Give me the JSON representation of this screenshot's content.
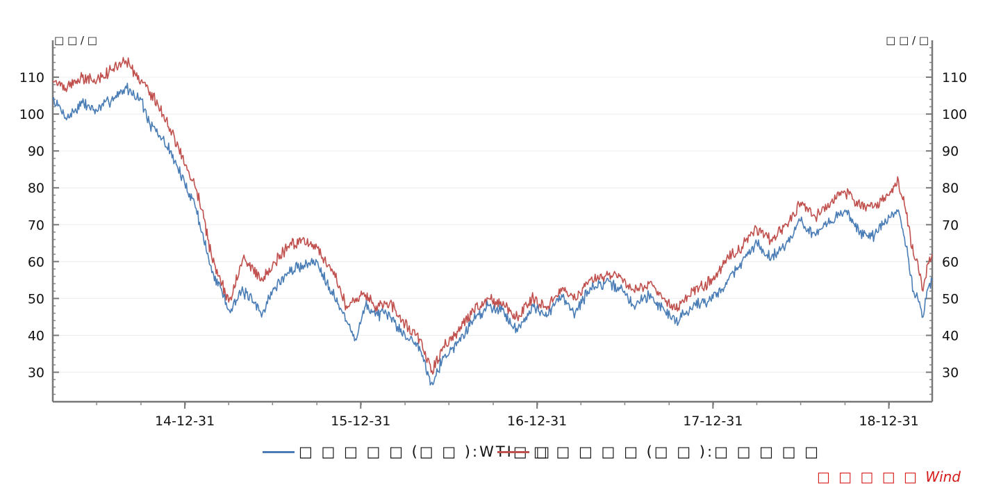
{
  "chart_data": {
    "type": "line",
    "left_unit": "□ □ / □",
    "right_unit": "□ □ / □",
    "ylim": [
      22,
      120
    ],
    "y_ticks": [
      30,
      40,
      50,
      60,
      70,
      80,
      90,
      100,
      110
    ],
    "y_tick_labels": [
      "30",
      "40",
      "50",
      "60",
      "70",
      "80",
      "90",
      "100",
      "110"
    ],
    "x_range": [
      "2014-04-01",
      "2019-03-31"
    ],
    "x_major_ticks": [
      "2014-12-31",
      "2015-12-31",
      "2016-12-31",
      "2017-12-31",
      "2018-12-31"
    ],
    "x_tick_labels": [
      "14-12-31",
      "15-12-31",
      "16-12-31",
      "17-12-31",
      "18-12-31"
    ],
    "grid": "horizontal",
    "legend_position": "bottom",
    "series": [
      {
        "name": "□ □ □ □ □ (□ □ ):WTI□ □",
        "color": "#4a7db5",
        "points": [
          [
            "2014-04-01",
            104
          ],
          [
            "2014-05-01",
            99
          ],
          [
            "2014-06-01",
            103
          ],
          [
            "2014-07-01",
            101
          ],
          [
            "2014-08-01",
            104
          ],
          [
            "2014-09-01",
            107
          ],
          [
            "2014-10-01",
            104
          ],
          [
            "2014-10-20",
            97
          ],
          [
            "2014-11-10",
            94
          ],
          [
            "2014-12-01",
            90
          ],
          [
            "2014-12-31",
            81
          ],
          [
            "2015-01-20",
            76
          ],
          [
            "2015-02-05",
            68
          ],
          [
            "2015-02-25",
            57
          ],
          [
            "2015-03-15",
            53
          ],
          [
            "2015-04-01",
            47
          ],
          [
            "2015-05-01",
            52
          ],
          [
            "2015-06-10",
            46
          ],
          [
            "2015-07-01",
            52
          ],
          [
            "2015-08-01",
            57
          ],
          [
            "2015-09-01",
            59
          ],
          [
            "2015-10-01",
            60
          ],
          [
            "2015-11-01",
            52
          ],
          [
            "2015-12-01",
            44
          ],
          [
            "2015-12-20",
            39
          ],
          [
            "2016-01-10",
            48
          ],
          [
            "2016-02-01",
            46
          ],
          [
            "2016-03-01",
            45
          ],
          [
            "2016-04-01",
            40
          ],
          [
            "2016-05-01",
            37
          ],
          [
            "2016-05-25",
            27
          ],
          [
            "2016-06-20",
            34
          ],
          [
            "2016-07-20",
            38
          ],
          [
            "2016-08-20",
            44
          ],
          [
            "2016-09-20",
            48
          ],
          [
            "2016-10-20",
            47
          ],
          [
            "2016-11-20",
            41
          ],
          [
            "2016-12-20",
            48
          ],
          [
            "2017-01-20",
            45
          ],
          [
            "2017-02-20",
            51
          ],
          [
            "2017-03-20",
            46
          ],
          [
            "2017-04-20",
            53
          ],
          [
            "2017-05-20",
            54
          ],
          [
            "2017-06-20",
            53
          ],
          [
            "2017-07-20",
            48
          ],
          [
            "2017-08-20",
            51
          ],
          [
            "2017-09-20",
            47
          ],
          [
            "2017-10-15",
            44
          ],
          [
            "2017-11-20",
            48
          ],
          [
            "2017-12-31",
            50
          ],
          [
            "2018-02-01",
            55
          ],
          [
            "2018-03-01",
            60
          ],
          [
            "2018-04-01",
            65
          ],
          [
            "2018-05-01",
            61
          ],
          [
            "2018-06-01",
            65
          ],
          [
            "2018-07-01",
            71
          ],
          [
            "2018-08-01",
            67
          ],
          [
            "2018-09-01",
            71
          ],
          [
            "2018-10-01",
            74
          ],
          [
            "2018-11-01",
            68
          ],
          [
            "2018-12-01",
            67
          ],
          [
            "2019-01-01",
            72
          ],
          [
            "2019-01-20",
            74
          ],
          [
            "2019-02-05",
            64
          ],
          [
            "2019-02-20",
            52
          ],
          [
            "2019-03-01",
            50
          ],
          [
            "2019-03-12",
            45
          ],
          [
            "2019-03-20",
            52
          ],
          [
            "2019-03-31",
            55
          ]
        ]
      },
      {
        "name": "□ □ □ □ □ (□ □ ):□ □ □ □ □",
        "color": "#c0504d",
        "points": [
          [
            "2014-04-01",
            109
          ],
          [
            "2014-05-01",
            107
          ],
          [
            "2014-06-01",
            110
          ],
          [
            "2014-07-01",
            109
          ],
          [
            "2014-08-01",
            112
          ],
          [
            "2014-09-01",
            114
          ],
          [
            "2014-10-01",
            109
          ],
          [
            "2014-10-20",
            106
          ],
          [
            "2014-11-10",
            101
          ],
          [
            "2014-12-01",
            96
          ],
          [
            "2014-12-31",
            86
          ],
          [
            "2015-01-20",
            81
          ],
          [
            "2015-02-05",
            74
          ],
          [
            "2015-02-25",
            61
          ],
          [
            "2015-03-15",
            55
          ],
          [
            "2015-04-01",
            49
          ],
          [
            "2015-05-01",
            61
          ],
          [
            "2015-06-10",
            55
          ],
          [
            "2015-07-01",
            59
          ],
          [
            "2015-08-01",
            64
          ],
          [
            "2015-09-01",
            66
          ],
          [
            "2015-10-01",
            64
          ],
          [
            "2015-11-01",
            58
          ],
          [
            "2015-12-01",
            48
          ],
          [
            "2015-12-20",
            50
          ],
          [
            "2016-01-10",
            51
          ],
          [
            "2016-02-01",
            48
          ],
          [
            "2016-03-01",
            49
          ],
          [
            "2016-04-01",
            43
          ],
          [
            "2016-05-01",
            39
          ],
          [
            "2016-05-25",
            30
          ],
          [
            "2016-06-20",
            37
          ],
          [
            "2016-07-20",
            41
          ],
          [
            "2016-08-20",
            47
          ],
          [
            "2016-09-20",
            50
          ],
          [
            "2016-10-20",
            48
          ],
          [
            "2016-11-20",
            45
          ],
          [
            "2016-12-20",
            50
          ],
          [
            "2017-01-20",
            47
          ],
          [
            "2017-02-20",
            52
          ],
          [
            "2017-03-20",
            50
          ],
          [
            "2017-04-20",
            55
          ],
          [
            "2017-05-20",
            56
          ],
          [
            "2017-06-20",
            56
          ],
          [
            "2017-07-20",
            52
          ],
          [
            "2017-08-20",
            54
          ],
          [
            "2017-09-20",
            50
          ],
          [
            "2017-10-15",
            47
          ],
          [
            "2017-11-20",
            52
          ],
          [
            "2017-12-31",
            55
          ],
          [
            "2018-02-01",
            61
          ],
          [
            "2018-03-01",
            64
          ],
          [
            "2018-04-01",
            69
          ],
          [
            "2018-05-01",
            66
          ],
          [
            "2018-06-01",
            70
          ],
          [
            "2018-07-01",
            76
          ],
          [
            "2018-08-01",
            72
          ],
          [
            "2018-09-01",
            76
          ],
          [
            "2018-10-01",
            79
          ],
          [
            "2018-11-01",
            75
          ],
          [
            "2018-12-01",
            75
          ],
          [
            "2019-01-01",
            78
          ],
          [
            "2019-01-20",
            82
          ],
          [
            "2019-02-05",
            73
          ],
          [
            "2019-02-20",
            62
          ],
          [
            "2019-03-01",
            60
          ],
          [
            "2019-03-12",
            52
          ],
          [
            "2019-03-20",
            59
          ],
          [
            "2019-03-31",
            62
          ]
        ]
      }
    ]
  },
  "source": {
    "prefix": "□ □ □ □ □",
    "brand": "Wind"
  }
}
